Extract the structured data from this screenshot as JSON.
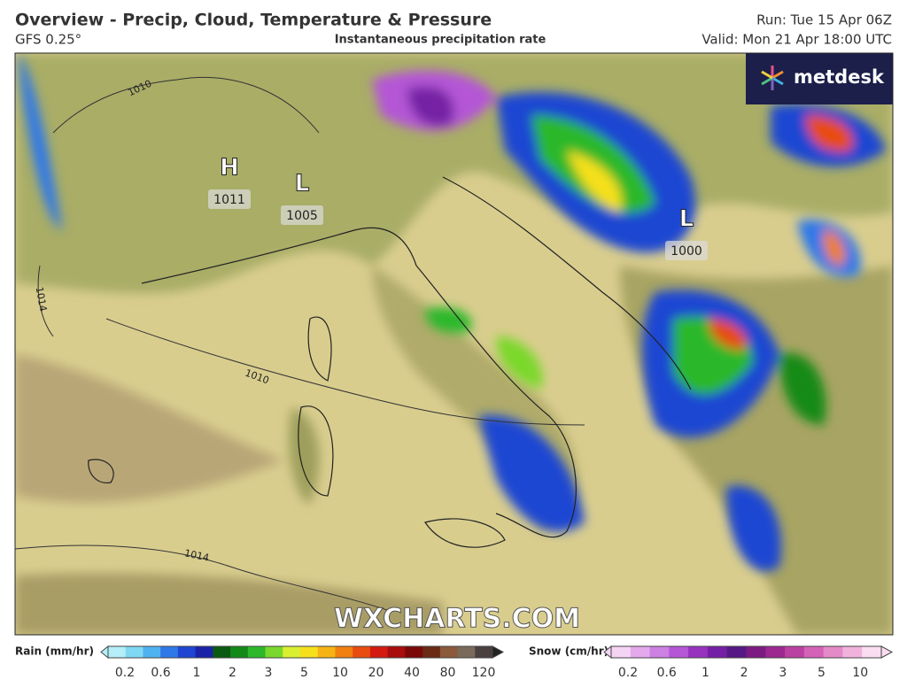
{
  "header": {
    "title": "Overview - Precip, Cloud, Temperature & Pressure",
    "model": "GFS 0.25°",
    "product": "Instantaneous precipitation rate",
    "run": "Run: Tue 15 Apr 06Z",
    "valid": "Valid: Mon 21 Apr 18:00 UTC"
  },
  "map": {
    "brand": "metdesk",
    "watermark": "WXCHARTS.COM",
    "pressure_centers": [
      {
        "symbol": "H",
        "value": "1011"
      },
      {
        "symbol": "L",
        "value": "1005"
      },
      {
        "symbol": "L",
        "value": "1000"
      }
    ],
    "isobar_labels": [
      "1010",
      "1014",
      "1010",
      "1014"
    ]
  },
  "legend": {
    "rain": {
      "label": "Rain (mm/hr)",
      "ticks": [
        "0.2",
        "0.6",
        "1",
        "2",
        "3",
        "5",
        "10",
        "20",
        "40",
        "80",
        "120"
      ],
      "colors": [
        "#b4eef8",
        "#7fd8f2",
        "#4fb2f0",
        "#2f78e8",
        "#1e46d2",
        "#1a22a8",
        "#0b5a12",
        "#138a18",
        "#2cb82a",
        "#7ad82c",
        "#d8f030",
        "#f6e01c",
        "#f6b414",
        "#f08010",
        "#e84c10",
        "#d41a10",
        "#a80c0c",
        "#7a0808",
        "#6a2a14",
        "#8a5a3a",
        "#7a6a5a",
        "#4a4040"
      ]
    },
    "snow": {
      "label": "Snow (cm/hr)",
      "ticks": [
        "0.2",
        "0.6",
        "1",
        "2",
        "3",
        "5",
        "10"
      ],
      "colors": [
        "#f4d4f4",
        "#e4a8ec",
        "#cc80e2",
        "#b456d6",
        "#9632be",
        "#7420a4",
        "#561884",
        "#7c1a82",
        "#9c2890",
        "#bc40a2",
        "#d462b6",
        "#e48ac8",
        "#f0b2dc",
        "#faddf0"
      ]
    }
  }
}
